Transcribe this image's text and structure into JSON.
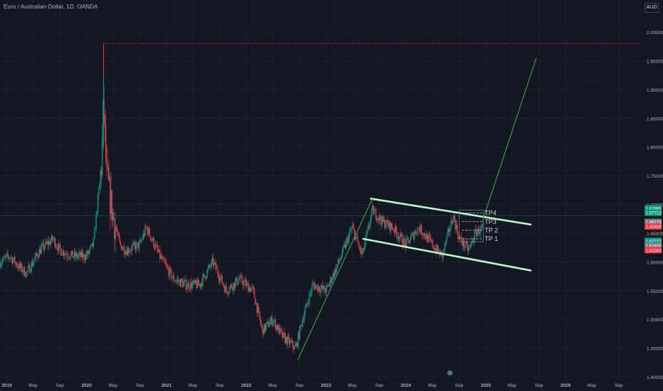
{
  "header": {
    "symbol_title": "Euro / Australian Dollar, 1D, OANDA",
    "currency_label": "AUD"
  },
  "colors": {
    "background": "#131722",
    "grid": "#1e222d",
    "axis_text": "#b2b5be",
    "up_candle": "#089981",
    "down_candle": "#f23645",
    "trend_line": "#4caf50",
    "channel": "#b9f6ca",
    "resistance": "#f23645",
    "target_box": "#787b86"
  },
  "chart_data": {
    "type": "candlestick",
    "title": "Euro / Australian Dollar, 1D, OANDA",
    "xlabel": "",
    "ylabel": "",
    "x_range": [
      "2018-12-01",
      "2026-12-15"
    ],
    "ylim": [
      1.4,
      2.02
    ],
    "y_ticks": [
      1.4,
      1.45,
      1.5,
      1.55,
      1.6,
      1.65,
      1.7,
      1.75,
      1.8,
      1.85,
      1.9,
      1.95,
      2.0
    ],
    "y_tick_labels": [
      "1.40000",
      "1.45000",
      "1.50000",
      "1.55000",
      "1.60000",
      "1.65000",
      "1.70000",
      "1.75000",
      "1.80000",
      "1.85000",
      "1.90000",
      "1.95000",
      "2.00000"
    ],
    "x_ticks": [
      {
        "date": "2019-01-01",
        "label": "2019"
      },
      {
        "date": "2019-05-01",
        "label": "May"
      },
      {
        "date": "2019-09-01",
        "label": "Sep"
      },
      {
        "date": "2020-01-01",
        "label": "2020"
      },
      {
        "date": "2020-05-01",
        "label": "May"
      },
      {
        "date": "2020-09-01",
        "label": "Sep"
      },
      {
        "date": "2021-01-01",
        "label": "2021"
      },
      {
        "date": "2021-05-01",
        "label": "May"
      },
      {
        "date": "2021-09-01",
        "label": "Sep"
      },
      {
        "date": "2022-01-01",
        "label": "2022"
      },
      {
        "date": "2022-05-01",
        "label": "May"
      },
      {
        "date": "2022-09-01",
        "label": "Sep"
      },
      {
        "date": "2023-01-01",
        "label": "2023"
      },
      {
        "date": "2023-05-01",
        "label": "May"
      },
      {
        "date": "2023-09-01",
        "label": "Sep"
      },
      {
        "date": "2024-01-01",
        "label": "2024"
      },
      {
        "date": "2024-05-01",
        "label": "May"
      },
      {
        "date": "2024-09-01",
        "label": "Sep"
      },
      {
        "date": "2025-01-01",
        "label": "2025"
      },
      {
        "date": "2025-05-01",
        "label": "May"
      },
      {
        "date": "2025-09-01",
        "label": "Sep"
      },
      {
        "date": "2026-01-01",
        "label": "2026"
      },
      {
        "date": "2026-05-01",
        "label": "May"
      },
      {
        "date": "2026-09-01",
        "label": "Sep"
      }
    ],
    "price_path": [
      [
        "2018-12-01",
        1.6
      ],
      [
        "2019-01-15",
        1.61
      ],
      [
        "2019-03-01",
        1.59
      ],
      [
        "2019-04-01",
        1.58
      ],
      [
        "2019-06-01",
        1.62
      ],
      [
        "2019-08-01",
        1.64
      ],
      [
        "2019-09-01",
        1.62
      ],
      [
        "2019-11-01",
        1.61
      ],
      [
        "2020-01-01",
        1.61
      ],
      [
        "2020-02-01",
        1.63
      ],
      [
        "2020-03-10",
        1.77
      ],
      [
        "2020-03-19",
        1.88
      ],
      [
        "2020-04-01",
        1.75
      ],
      [
        "2020-05-01",
        1.68
      ],
      [
        "2020-06-01",
        1.63
      ],
      [
        "2020-07-01",
        1.62
      ],
      [
        "2020-09-01",
        1.63
      ],
      [
        "2020-10-01",
        1.66
      ],
      [
        "2020-12-01",
        1.61
      ],
      [
        "2021-02-01",
        1.57
      ],
      [
        "2021-04-01",
        1.56
      ],
      [
        "2021-06-01",
        1.56
      ],
      [
        "2021-08-01",
        1.6
      ],
      [
        "2021-10-01",
        1.55
      ],
      [
        "2021-12-01",
        1.57
      ],
      [
        "2022-02-01",
        1.55
      ],
      [
        "2022-03-15",
        1.48
      ],
      [
        "2022-05-01",
        1.5
      ],
      [
        "2022-06-15",
        1.47
      ],
      [
        "2022-08-15",
        1.45
      ],
      [
        "2022-09-15",
        1.5
      ],
      [
        "2022-11-01",
        1.56
      ],
      [
        "2023-01-01",
        1.55
      ],
      [
        "2023-03-01",
        1.6
      ],
      [
        "2023-05-01",
        1.66
      ],
      [
        "2023-06-15",
        1.61
      ],
      [
        "2023-08-01",
        1.69
      ],
      [
        "2023-09-15",
        1.67
      ],
      [
        "2023-11-01",
        1.66
      ],
      [
        "2024-01-01",
        1.63
      ],
      [
        "2024-03-01",
        1.66
      ],
      [
        "2024-05-01",
        1.63
      ],
      [
        "2024-06-15",
        1.61
      ],
      [
        "2024-08-05",
        1.68
      ],
      [
        "2024-09-01",
        1.64
      ],
      [
        "2024-10-15",
        1.62
      ],
      [
        "2024-11-15",
        1.65
      ],
      [
        "2024-12-20",
        1.66
      ]
    ],
    "pre_covid_spike": {
      "date": "2020-03-19",
      "low": 1.8,
      "high": 1.98
    },
    "resistance_line": {
      "price": 1.98,
      "from": "2020-03-19",
      "to": "2026-12-10"
    },
    "green_rally_line": [
      [
        "2022-08-25",
        1.43
      ],
      [
        "2023-08-01",
        1.71
      ]
    ],
    "green_projection_line": [
      [
        "2024-12-20",
        1.675
      ],
      [
        "2025-08-20",
        1.955
      ]
    ],
    "channel_upper": [
      [
        "2023-07-25",
        1.71
      ],
      [
        "2025-07-25",
        1.665
      ]
    ],
    "channel_lower": [
      [
        "2023-06-20",
        1.64
      ],
      [
        "2025-07-25",
        1.585
      ]
    ],
    "horizontal_reference": 1.68,
    "targets": [
      {
        "label": "TP 1",
        "price": 1.64
      },
      {
        "label": "TP 2",
        "price": 1.655
      },
      {
        "label": "TP3",
        "price": 1.67
      },
      {
        "label": "TP4",
        "price": 1.685
      }
    ],
    "price_badges": [
      {
        "value": "1.67800",
        "color": "#089981"
      },
      {
        "value": "1.67712",
        "color": "#089981"
      },
      {
        "value": "1.66174",
        "color": "#787b86"
      },
      {
        "value": "1.65439",
        "color": "#f23645"
      },
      {
        "value": "1.62777",
        "color": "#089981"
      },
      {
        "value": "1.62430",
        "color": "#787b86"
      },
      {
        "value": "1.61383",
        "color": "#f23645"
      }
    ],
    "grid": true,
    "legend": "none"
  }
}
